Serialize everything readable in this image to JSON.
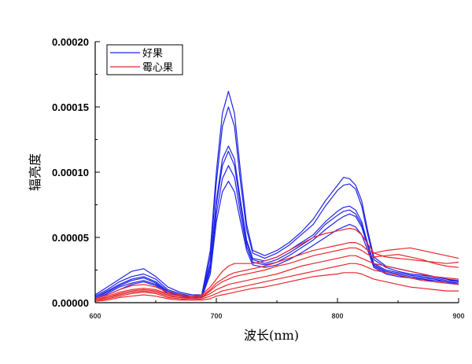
{
  "chart_data": {
    "type": "line",
    "title": "",
    "xlabel": "波长(nm)",
    "ylabel": "辐亮度",
    "xlim": [
      600,
      900
    ],
    "ylim": [
      0,
      0.0002
    ],
    "x_ticks": [
      600,
      700,
      800,
      900
    ],
    "x_tick_labels": [
      "600",
      "700",
      "800",
      "900"
    ],
    "y_ticks": [
      0,
      5e-05,
      0.0001,
      0.00015,
      0.0002
    ],
    "y_tick_labels": [
      "0.00000",
      "0.00005",
      "0.00010",
      "0.00015",
      "0.00020"
    ],
    "grid": false,
    "legend_position": "top-left",
    "legend": [
      {
        "label": "好果",
        "color": "#1f24e6"
      },
      {
        "label": "霉心果",
        "color": "#e8262b"
      }
    ],
    "x": [
      600,
      610,
      620,
      630,
      640,
      650,
      660,
      670,
      680,
      688,
      695,
      700,
      705,
      710,
      715,
      720,
      725,
      730,
      740,
      750,
      760,
      770,
      780,
      790,
      800,
      805,
      810,
      815,
      820,
      825,
      830,
      840,
      850,
      860,
      870,
      880,
      890,
      900
    ],
    "series": [
      {
        "group": "好果",
        "color": "#1f24e6",
        "values": [
          6e-06,
          1.2e-05,
          1.8e-05,
          2.4e-05,
          2.6e-05,
          2e-05,
          1.2e-05,
          8e-06,
          6e-06,
          6e-06,
          4e-05,
          0.0001,
          0.000145,
          0.000162,
          0.000145,
          0.0001,
          6e-05,
          4e-05,
          3.6e-05,
          4e-05,
          4.6e-05,
          5.4e-05,
          6.4e-05,
          7.8e-05,
          9e-05,
          9.6e-05,
          9.5e-05,
          9e-05,
          7.8e-05,
          5.5e-05,
          3.5e-05,
          2.8e-05,
          2.6e-05,
          2.4e-05,
          2.2e-05,
          2e-05,
          1.8e-05,
          1.6e-05
        ]
      },
      {
        "group": "好果",
        "color": "#1f24e6",
        "values": [
          5e-06,
          1e-05,
          1.6e-05,
          2e-05,
          2.2e-05,
          1.8e-05,
          1e-05,
          7e-06,
          5e-06,
          5e-06,
          3.5e-05,
          9.2e-05,
          0.000135,
          0.00015,
          0.000135,
          9.2e-05,
          5.6e-05,
          3.8e-05,
          3.4e-05,
          3.8e-05,
          4.4e-05,
          5.2e-05,
          6e-05,
          7.4e-05,
          8.6e-05,
          9e-05,
          9.1e-05,
          8.7e-05,
          7.4e-05,
          5.2e-05,
          3.3e-05,
          2.7e-05,
          2.4e-05,
          2.2e-05,
          2.1e-05,
          2e-05,
          1.8e-05,
          1.7e-05
        ]
      },
      {
        "group": "好果",
        "color": "#1f24e6",
        "values": [
          4e-06,
          9e-06,
          1.4e-05,
          1.8e-05,
          2e-05,
          1.6e-05,
          9e-06,
          6e-06,
          4e-06,
          5e-06,
          3e-05,
          7.8e-05,
          0.00011,
          0.00012,
          0.00011,
          7.8e-05,
          4.8e-05,
          3.4e-05,
          3.2e-05,
          3.5e-05,
          4e-05,
          4.6e-05,
          5.2e-05,
          6.2e-05,
          7e-05,
          7.3e-05,
          7.4e-05,
          7.1e-05,
          6.2e-05,
          4.5e-05,
          3e-05,
          2.5e-05,
          2.3e-05,
          2.1e-05,
          2e-05,
          1.9e-05,
          1.7e-05,
          1.6e-05
        ]
      },
      {
        "group": "好果",
        "color": "#1f24e6",
        "values": [
          4e-06,
          8e-06,
          1.3e-05,
          1.7e-05,
          1.9e-05,
          1.5e-05,
          8e-06,
          6e-06,
          4e-06,
          4e-06,
          2.8e-05,
          7.5e-05,
          0.000105,
          0.000116,
          0.000105,
          7.4e-05,
          4.6e-05,
          3.3e-05,
          3e-05,
          3.3e-05,
          3.8e-05,
          4.4e-05,
          5e-05,
          6e-05,
          6.7e-05,
          7e-05,
          7.1e-05,
          6.8e-05,
          6e-05,
          4.4e-05,
          2.9e-05,
          2.4e-05,
          2.2e-05,
          2e-05,
          1.9e-05,
          1.8e-05,
          1.6e-05,
          1.5e-05
        ]
      },
      {
        "group": "好果",
        "color": "#1f24e6",
        "values": [
          3e-06,
          7e-06,
          1.2e-05,
          1.5e-05,
          1.7e-05,
          1.4e-05,
          8e-06,
          5e-06,
          4e-06,
          4e-06,
          2.5e-05,
          6.8e-05,
          9.5e-05,
          0.000105,
          9.6e-05,
          6.8e-05,
          4.3e-05,
          3.1e-05,
          2.9e-05,
          3.1e-05,
          3.6e-05,
          4.2e-05,
          4.8e-05,
          5.6e-05,
          6.3e-05,
          6.6e-05,
          6.8e-05,
          6.6e-05,
          5.8e-05,
          4.3e-05,
          2.8e-05,
          2.3e-05,
          2.1e-05,
          1.9e-05,
          1.8e-05,
          1.7e-05,
          1.6e-05,
          1.4e-05
        ]
      },
      {
        "group": "好果",
        "color": "#1f24e6",
        "values": [
          3e-06,
          6e-06,
          1e-05,
          1.4e-05,
          1.6e-05,
          1.3e-05,
          7e-06,
          5e-06,
          3e-06,
          4e-06,
          2.2e-05,
          6.2e-05,
          8.5e-05,
          9.3e-05,
          8.5e-05,
          6.2e-05,
          4e-05,
          2.9e-05,
          2.7e-05,
          2.9e-05,
          3.3e-05,
          3.8e-05,
          4.4e-05,
          5e-05,
          5.6e-05,
          5.8e-05,
          6e-05,
          5.8e-05,
          5.2e-05,
          4e-05,
          2.7e-05,
          2.2e-05,
          2e-05,
          1.9e-05,
          1.8e-05,
          1.6e-05,
          1.5e-05,
          1.4e-05
        ]
      },
      {
        "group": "霉心果",
        "color": "#e8262b",
        "values": [
          3e-06,
          6e-06,
          1e-05,
          1.3e-05,
          1.4e-05,
          1.2e-05,
          8e-06,
          6e-06,
          5e-06,
          6e-06,
          1.2e-05,
          1.8e-05,
          2.4e-05,
          2.8e-05,
          3e-05,
          3e-05,
          3e-05,
          3e-05,
          3.2e-05,
          3.5e-05,
          4e-05,
          4.5e-05,
          5e-05,
          5.3e-05,
          5.5e-05,
          5.6e-05,
          5.7e-05,
          5.6e-05,
          5.2e-05,
          4.5e-05,
          3.8e-05,
          3.5e-05,
          3.4e-05,
          3.3e-05,
          3.2e-05,
          3.1e-05,
          3e-05,
          3.1e-05
        ]
      },
      {
        "group": "霉心果",
        "color": "#e8262b",
        "values": [
          2e-06,
          5e-06,
          8e-06,
          1e-05,
          1.1e-05,
          1e-05,
          7e-06,
          5e-06,
          4e-06,
          5e-06,
          1e-05,
          1.5e-05,
          1.8e-05,
          2.1e-05,
          2.3e-05,
          2.4e-05,
          2.5e-05,
          2.6e-05,
          2.8e-05,
          3.1e-05,
          3.4e-05,
          3.7e-05,
          4e-05,
          4.2e-05,
          4.4e-05,
          4.5e-05,
          4.6e-05,
          4.6e-05,
          4.4e-05,
          4e-05,
          3.8e-05,
          4e-05,
          4.1e-05,
          4.2e-05,
          4e-05,
          3.8e-05,
          3.6e-05,
          3.4e-05
        ]
      },
      {
        "group": "霉心果",
        "color": "#e8262b",
        "values": [
          2e-06,
          4e-06,
          7e-06,
          9e-06,
          1e-05,
          9e-06,
          6e-06,
          4e-06,
          3e-06,
          4e-06,
          9e-06,
          1.3e-05,
          1.6e-05,
          1.8e-05,
          2e-05,
          2.1e-05,
          2.2e-05,
          2.3e-05,
          2.5e-05,
          2.8e-05,
          3e-05,
          3.3e-05,
          3.6e-05,
          3.8e-05,
          4e-05,
          4.1e-05,
          4.2e-05,
          4.2e-05,
          4e-05,
          3.7e-05,
          3.5e-05,
          3.6e-05,
          3.7e-05,
          3.5e-05,
          3.3e-05,
          3e-05,
          2.8e-05,
          2.7e-05
        ]
      },
      {
        "group": "霉心果",
        "color": "#e8262b",
        "values": [
          2e-06,
          4e-06,
          6e-06,
          8e-06,
          9e-06,
          8e-06,
          5e-06,
          4e-06,
          3e-06,
          4e-06,
          7e-06,
          1e-05,
          1.2e-05,
          1.4e-05,
          1.5e-05,
          1.6e-05,
          1.7e-05,
          1.8e-05,
          2e-05,
          2.2e-05,
          2.5e-05,
          2.8e-05,
          3e-05,
          3.2e-05,
          3.4e-05,
          3.5e-05,
          3.6e-05,
          3.6e-05,
          3.4e-05,
          3.2e-05,
          3e-05,
          2.8e-05,
          2.6e-05,
          2.4e-05,
          2.2e-05,
          2e-05,
          1.9e-05,
          1.8e-05
        ]
      },
      {
        "group": "霉心果",
        "color": "#e8262b",
        "values": [
          1e-06,
          3e-06,
          5e-06,
          7e-06,
          8e-06,
          7e-06,
          4e-06,
          3e-06,
          2e-06,
          3e-06,
          5e-06,
          7e-06,
          9e-06,
          1e-05,
          1.1e-05,
          1.2e-05,
          1.3e-05,
          1.4e-05,
          1.6e-05,
          1.8e-05,
          2e-05,
          2.2e-05,
          2.4e-05,
          2.6e-05,
          2.8e-05,
          2.9e-05,
          3e-05,
          3e-05,
          2.9e-05,
          2.7e-05,
          2.5e-05,
          2.3e-05,
          2.1e-05,
          1.9e-05,
          1.7e-05,
          1.6e-05,
          1.5e-05,
          1.4e-05
        ]
      },
      {
        "group": "霉心果",
        "color": "#e8262b",
        "values": [
          1e-06,
          2e-06,
          4e-06,
          5e-06,
          6e-06,
          5e-06,
          3e-06,
          2e-06,
          2e-06,
          2e-06,
          3e-06,
          5e-06,
          6e-06,
          7e-06,
          8e-06,
          9e-06,
          1e-05,
          1.1e-05,
          1.2e-05,
          1.4e-05,
          1.6e-05,
          1.8e-05,
          2e-05,
          2.1e-05,
          2.2e-05,
          2.3e-05,
          2.3e-05,
          2.3e-05,
          2.2e-05,
          2e-05,
          1.8e-05,
          1.6e-05,
          1.4e-05,
          1.2e-05,
          1.1e-05,
          1e-05,
          9e-06,
          9e-06
        ]
      }
    ]
  }
}
